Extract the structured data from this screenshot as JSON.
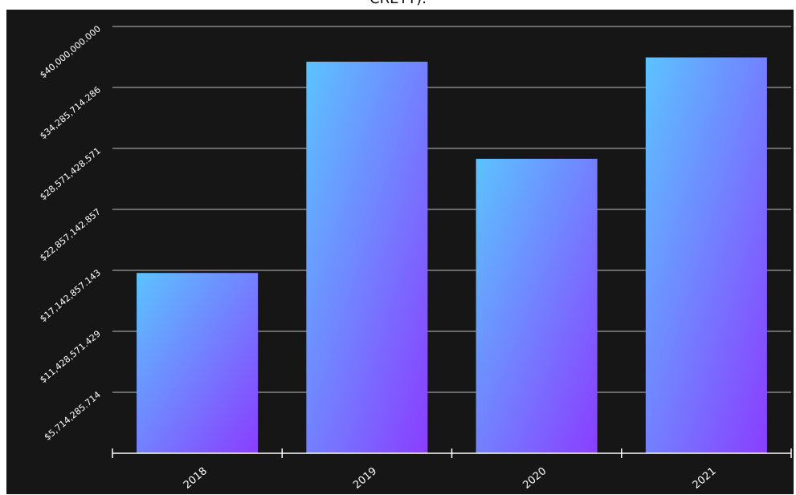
{
  "page": {
    "title_fragment": "CRETT)."
  },
  "chart_data": {
    "type": "bar",
    "categories": [
      "2018",
      "2019",
      "2020",
      "2021"
    ],
    "values": [
      16900000,
      36700000,
      27600000,
      37100000
    ],
    "ylim": [
      0,
      40000000
    ],
    "y_ticks": [
      0,
      5714285.714,
      11428571.429,
      17142857.143,
      22857142.857,
      28571428.571,
      34285714.286,
      40000000
    ],
    "y_tick_labels": [
      "",
      "$5,714,285.714",
      "$11,428,571.429",
      "$17,142,857.143",
      "$22,857,142.857",
      "$28,571,428.571",
      "$34,285,714.286",
      "$40,000,000.000"
    ],
    "grid": true,
    "legend": "none",
    "colors": {
      "background": "#161616",
      "grid": "#bdbdbd",
      "axis": "#ffffff",
      "tick_text": "#ffffff",
      "bar_gradient_start": "#5cc3ff",
      "bar_gradient_end": "#8a3dff"
    }
  }
}
